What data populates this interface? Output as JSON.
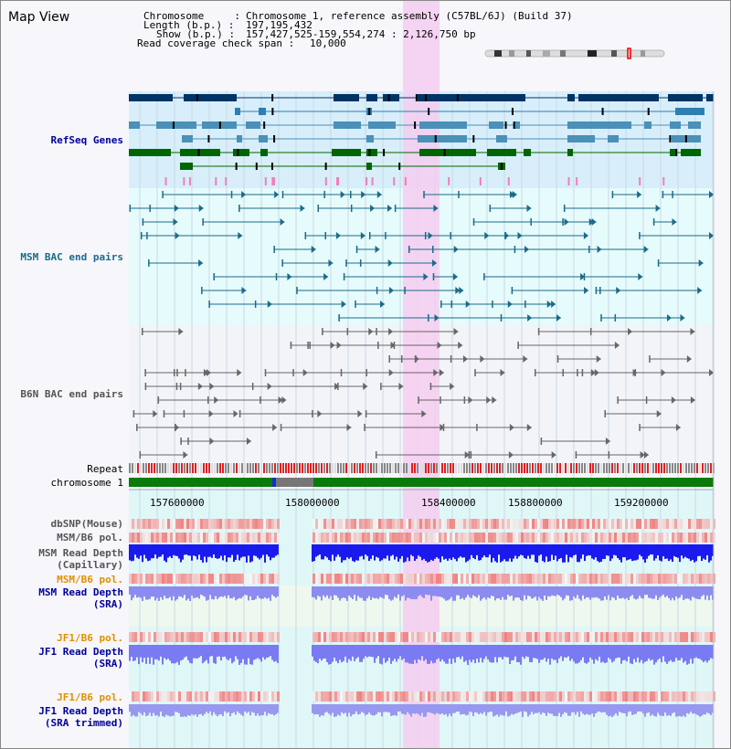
{
  "header": {
    "map_title": "Map View",
    "chromosome_key": "Chromosome     :",
    "chromosome_val": "Chromosome 1, reference assembly (C57BL/6J) (Build 37)",
    "length_key": "Length (b.p.) :",
    "length_val": "197,195,432",
    "show_key": "Show (b.p.) :",
    "show_val": "157,427,525-159,554,274 : 2,126,750 bp",
    "read_cov_key": "Read coverage check span :",
    "read_cov_val": "10,000"
  },
  "tracks": {
    "refseq": "RefSeq Genes",
    "msm_bac": "MSM BAC end pairs",
    "b6n_bac": "B6N BAC end pairs",
    "repeat": "Repeat",
    "chromosome": "chromosome 1",
    "dbsnp": "dbSNP(Mouse)",
    "msm_b6_pol1": "MSM/B6 pol.",
    "msm_depth_cap_1": "MSM Read Depth",
    "msm_depth_cap_2": "(Capillary)",
    "msm_b6_pol2": "MSM/B6 pol.",
    "msm_depth_sra_1": "MSM Read Depth",
    "msm_depth_sra_2": "(SRA)",
    "jf1_b6_pol1": "JF1/B6 pol.",
    "jf1_depth_sra_1": "JF1 Read Depth",
    "jf1_depth_sra_2": "(SRA)",
    "jf1_b6_pol2": "JF1/B6 pol.",
    "jf1_depth_trim_1": "JF1 Read Depth",
    "jf1_depth_trim_2": "(SRA trimmed)"
  },
  "axis": {
    "ticks": [
      "157600000",
      "158000000",
      "158400000",
      "158800000",
      "159200000"
    ]
  },
  "colors": {
    "refseq_blue": "#003366",
    "refseq_mid": "#4a90b8",
    "refseq_green": "#006600",
    "msm_bac": "#1a6b8a",
    "b6n_bac": "#666666",
    "highlight": "#f5cdf0",
    "label_blue": "#000099",
    "label_orange": "#e09000"
  }
}
